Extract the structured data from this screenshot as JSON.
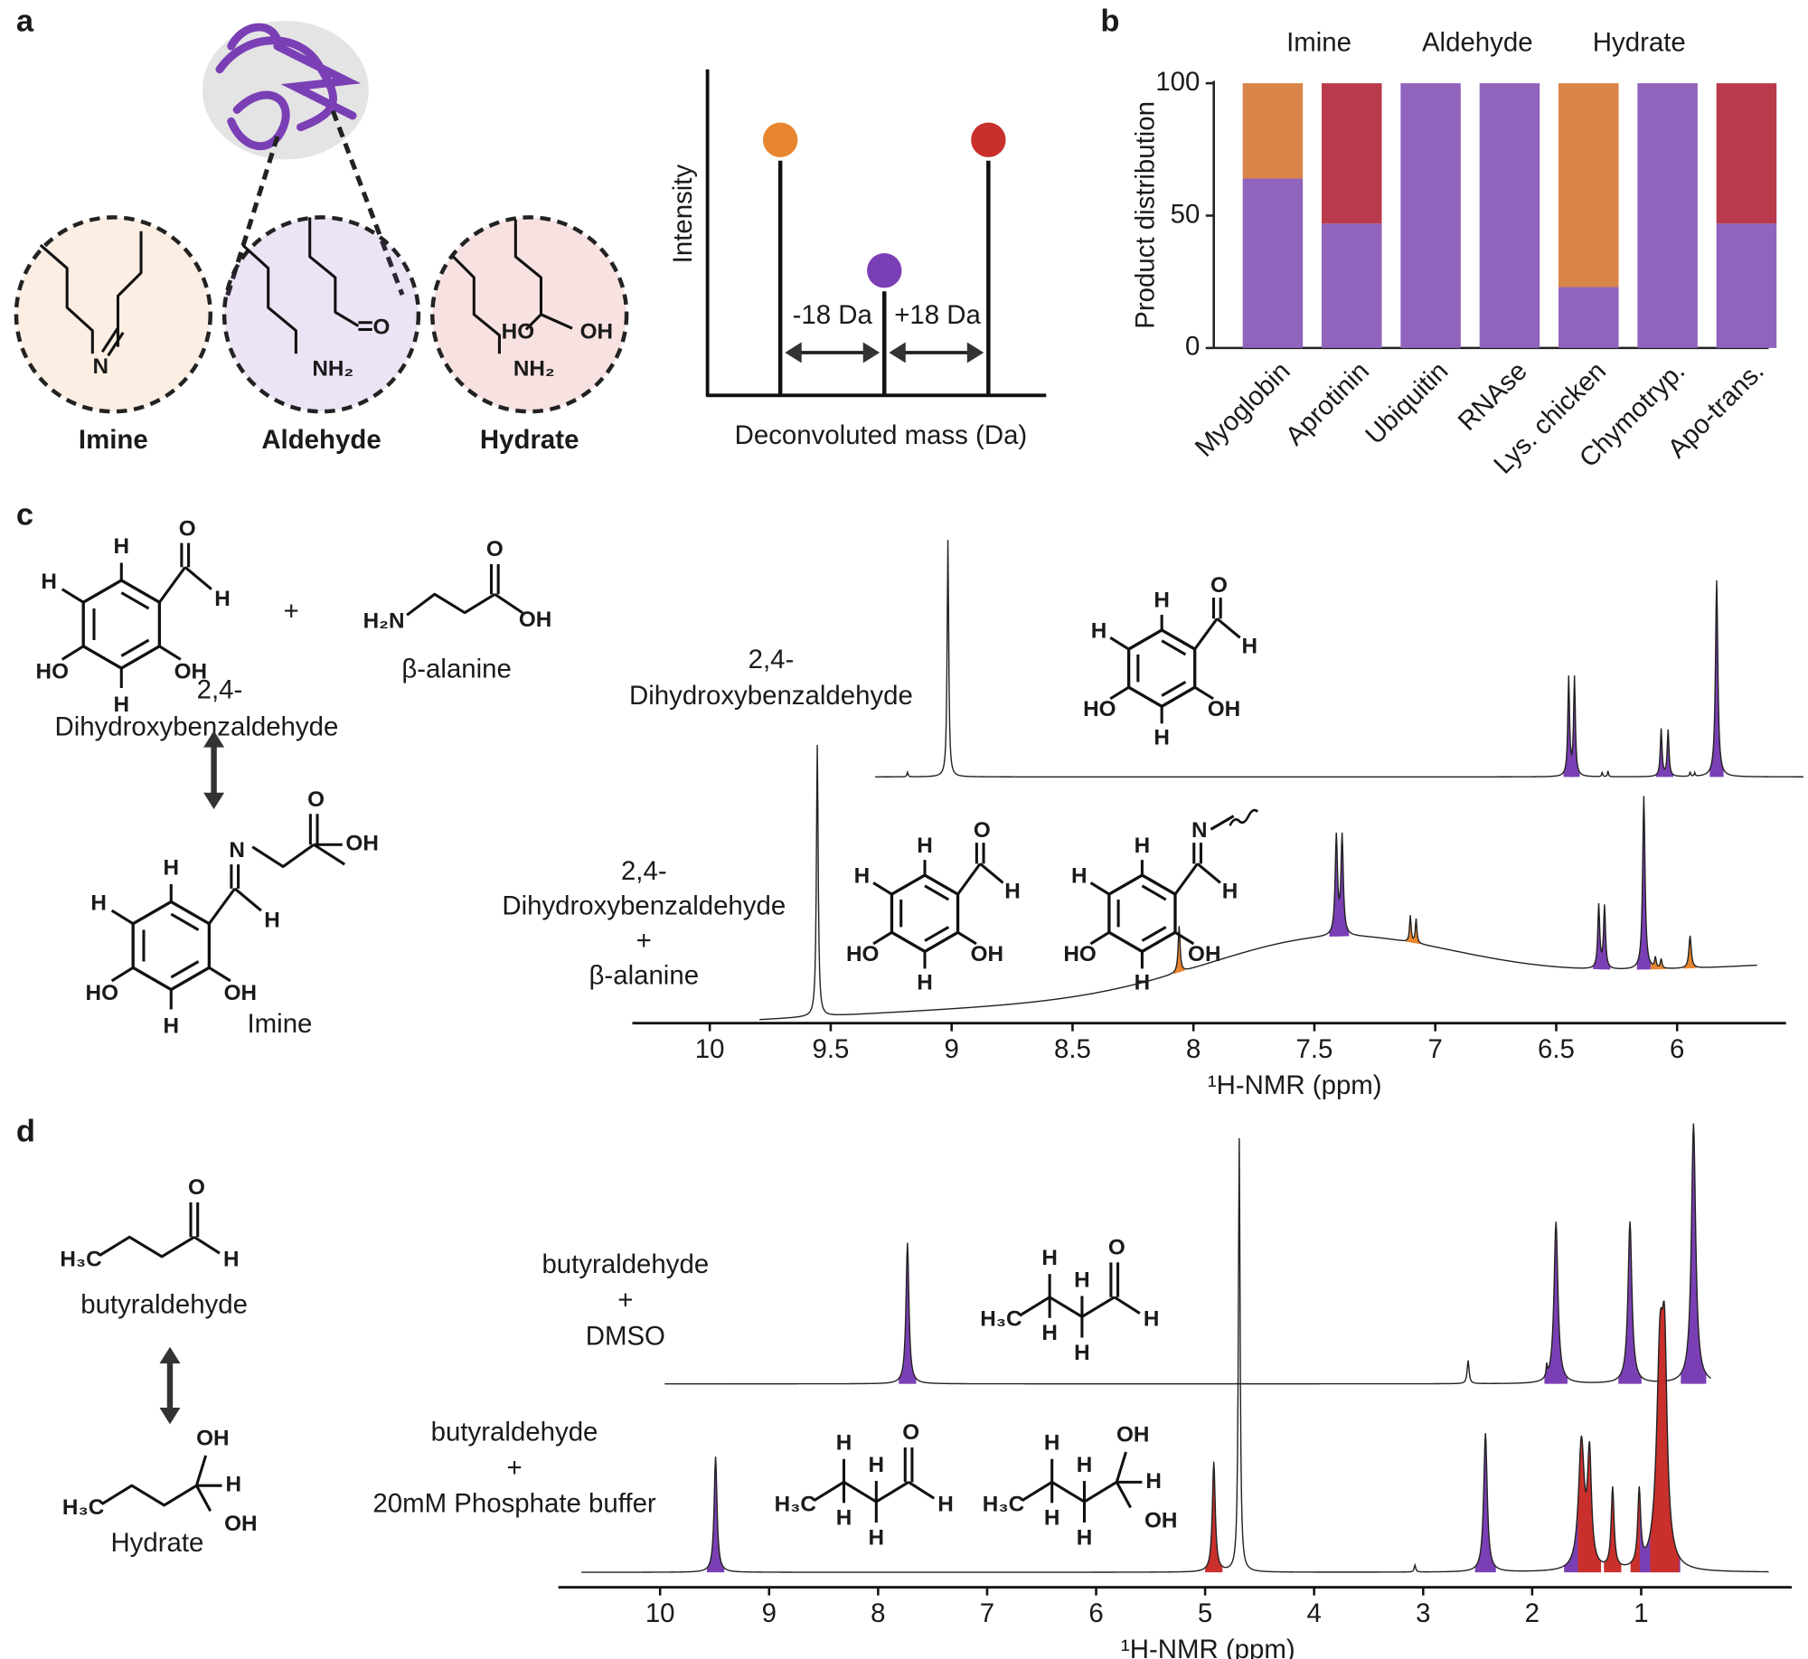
{
  "panel_labels": [
    "a",
    "b",
    "c",
    "d"
  ],
  "panel_a": {
    "sites": [
      {
        "name": "Imine",
        "color": "#e8852f",
        "atoms": [
          "N"
        ]
      },
      {
        "name": "Aldehyde",
        "color": "#7b3fb5",
        "atoms": [
          "O",
          "NH₂"
        ]
      },
      {
        "name": "Hydrate",
        "color": "#c9302c",
        "atoms": [
          "HO",
          "OH",
          "NH₂"
        ]
      }
    ],
    "ms": {
      "y_label": "Intensity",
      "x_label": "Deconvoluted mass (Da)",
      "shifts": [
        "-18 Da",
        "+18 Da"
      ]
    }
  },
  "chart_data": {
    "type": "bar",
    "stacked": true,
    "ylabel": "Product distribution",
    "categories": [
      "Myoglobin",
      "Aprotinin",
      "Ubiquitin",
      "RNAse",
      "Lys. chicken",
      "Chymotryp.",
      "Apo-trans."
    ],
    "series": [
      {
        "name": "Imine",
        "color": "#d98448",
        "values": [
          36,
          0,
          0,
          0,
          77,
          0,
          0
        ]
      },
      {
        "name": "Aldehyde",
        "color": "#9063bd",
        "values": [
          64,
          47,
          100,
          100,
          23,
          100,
          47
        ]
      },
      {
        "name": "Hydrate",
        "color": "#b93b4b",
        "values": [
          0,
          53,
          0,
          0,
          0,
          0,
          53
        ]
      }
    ],
    "ylim": [
      0,
      100
    ],
    "yticks": [
      0,
      50,
      100
    ]
  },
  "panel_c": {
    "scheme": {
      "benzaldehyde": {
        "atoms": [
          "H",
          "O",
          "H",
          "H",
          "HO",
          "OH",
          "H"
        ],
        "name": [
          "2,4-",
          "Dihydroxybenzaldehyde"
        ]
      },
      "plus": "+",
      "amine": {
        "atoms": [
          "H₂N",
          "O",
          "OH"
        ],
        "name": "β-alanine"
      },
      "imine": {
        "atoms": [
          "H",
          "N",
          "H",
          "H",
          "HO",
          "OH",
          "H"
        ],
        "chain_atoms": [
          "O",
          "OH"
        ],
        "name": "Imine"
      }
    },
    "spectra": [
      {
        "label": [
          "2,4-",
          "Dihydroxybenzaldehyde"
        ],
        "structures": [
          {
            "atoms": [
              "H",
              "O",
              "H",
              "H",
              "HO",
              "OH",
              "H"
            ],
            "color": "#7b3fb5"
          }
        ]
      },
      {
        "label": [
          "2,4-",
          "Dihydroxybenzaldehyde",
          "+",
          "β-alanine"
        ],
        "structures": [
          {
            "atoms": [
              "H",
              "O",
              "H",
              "H",
              "HO",
              "OH",
              "H"
            ],
            "color": "#7b3fb5"
          },
          {
            "atoms": [
              "H",
              "N",
              "H",
              "H",
              "HO",
              "OH",
              "H"
            ],
            "color": "#e8852f"
          }
        ]
      }
    ],
    "axis": {
      "label": "¹H-NMR (ppm)",
      "ticks": [
        "10",
        "9.5",
        "9",
        "8.5",
        "8",
        "7.5",
        "7",
        "6.5",
        "6"
      ]
    }
  },
  "panel_d": {
    "scheme": {
      "aldehyde": {
        "atoms": [
          "H₃C",
          "O",
          "H"
        ],
        "name": "butyraldehyde"
      },
      "hydrate": {
        "atoms": [
          "H₃C",
          "OH",
          "H",
          "OH"
        ],
        "name": "Hydrate"
      }
    },
    "spectra": [
      {
        "label": [
          "butyraldehyde",
          "+",
          "DMSO"
        ],
        "structures": [
          {
            "atoms": [
              "H₃C",
              "H",
              "H",
              "H",
              "H",
              "O",
              "H"
            ],
            "color": "#7b3fb5"
          }
        ]
      },
      {
        "label": [
          "butyraldehyde",
          "+",
          "20mM Phosphate buffer"
        ],
        "structures": [
          {
            "atoms": [
              "H₃C",
              "H",
              "H",
              "H",
              "H",
              "O",
              "H"
            ],
            "color": "#7b3fb5"
          },
          {
            "atoms": [
              "H₃C",
              "H",
              "H",
              "H",
              "H",
              "OH",
              "H",
              "OH"
            ],
            "color": "#c9302c"
          }
        ]
      }
    ],
    "axis": {
      "label": "¹H-NMR (ppm)",
      "ticks": [
        "10",
        "9",
        "8",
        "7",
        "6",
        "5",
        "4",
        "3",
        "2",
        "1"
      ]
    }
  }
}
